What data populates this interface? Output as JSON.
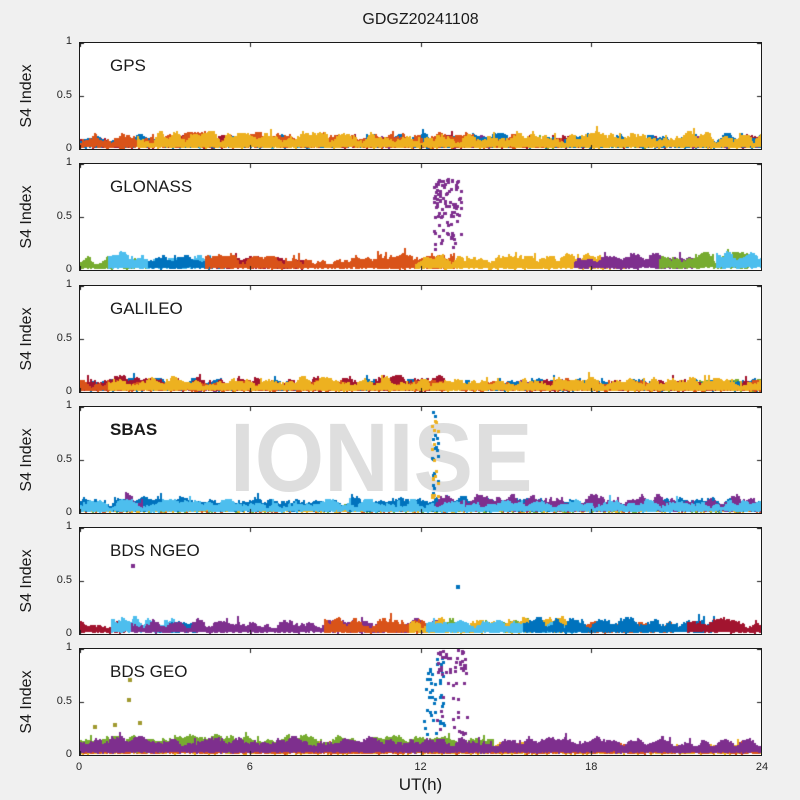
{
  "figure": {
    "title": "GDGZ20241108",
    "xlabel": "UT(h)",
    "ylabel": "S4 Index",
    "watermark": {
      "text": "IONISE",
      "subplot_index": 3,
      "color": "#dedede"
    },
    "background_color": "#f0f0f0",
    "plot_background": "#ffffff",
    "axis_color": "#1a1a1a",
    "x_ticks": [
      0,
      6,
      12,
      18,
      24
    ],
    "x_tick_labels": [
      "0",
      "6",
      "12",
      "18",
      "24"
    ],
    "y_ticks": [
      1,
      0.5,
      0
    ],
    "y_tick_labels": [
      "1",
      "0.5",
      "0"
    ],
    "palette": {
      "blue": "#0072BD",
      "orange": "#D95319",
      "yellow": "#EDB120",
      "purple": "#7E2F8E",
      "green": "#77AC30",
      "lightblue": "#4DBEEE",
      "darkred": "#A2142F",
      "olive": "#a09a30"
    }
  },
  "chart_data": [
    {
      "type": "scatter",
      "label": "GPS",
      "label_bold": false,
      "seed": 11,
      "xlim": [
        0,
        24
      ],
      "ylim": [
        0,
        1
      ],
      "bands": [
        {
          "color": "#77AC30",
          "x": [
            14,
            20
          ],
          "base": 0.02,
          "amp": 0.08
        },
        {
          "color": "#4DBEEE",
          "x": [
            3,
            9
          ],
          "base": 0.02,
          "amp": 0.09
        },
        {
          "color": "#A2142F",
          "x": [
            0,
            6
          ],
          "base": 0.02,
          "amp": 0.1
        },
        {
          "color": "#A2142F",
          "x": [
            9,
            24
          ],
          "base": 0.02,
          "amp": 0.1
        },
        {
          "color": "#7E2F8E",
          "x": [
            10,
            15
          ],
          "base": 0.02,
          "amp": 0.1
        },
        {
          "color": "#7E2F8E",
          "x": [
            20,
            24
          ],
          "base": 0.02,
          "amp": 0.09
        },
        {
          "color": "#0072BD",
          "x": [
            0,
            24
          ],
          "base": 0.02,
          "amp": 0.11
        },
        {
          "color": "#D95319",
          "x": [
            0,
            17
          ],
          "base": 0.02,
          "amp": 0.12
        },
        {
          "color": "#EDB120",
          "x": [
            2,
            24
          ],
          "base": 0.02,
          "amp": 0.13
        }
      ],
      "clusters": [],
      "points": []
    },
    {
      "type": "scatter",
      "label": "GLONASS",
      "label_bold": false,
      "seed": 22,
      "xlim": [
        0,
        24
      ],
      "ylim": [
        0,
        1
      ],
      "bands": [
        {
          "color": "#77AC30",
          "x": [
            0,
            2.6
          ],
          "base": 0.02,
          "amp": 0.12
        },
        {
          "color": "#4DBEEE",
          "x": [
            1.0,
            4.6
          ],
          "base": 0.03,
          "amp": 0.13
        },
        {
          "color": "#0072BD",
          "x": [
            2.4,
            5.6
          ],
          "base": 0.02,
          "amp": 0.11
        },
        {
          "color": "#A2142F",
          "x": [
            4.8,
            8.0
          ],
          "base": 0.02,
          "amp": 0.1
        },
        {
          "color": "#D95319",
          "x": [
            4.4,
            13.2
          ],
          "base": 0.02,
          "amp": 0.12
        },
        {
          "color": "#EDB120",
          "x": [
            11.8,
            19.6
          ],
          "base": 0.02,
          "amp": 0.12
        },
        {
          "color": "#7E2F8E",
          "x": [
            17.4,
            21.6
          ],
          "base": 0.02,
          "amp": 0.12
        },
        {
          "color": "#77AC30",
          "x": [
            20.4,
            23.6
          ],
          "base": 0.03,
          "amp": 0.12
        },
        {
          "color": "#4DBEEE",
          "x": [
            22.4,
            24
          ],
          "base": 0.04,
          "amp": 0.12
        }
      ],
      "clusters": [
        {
          "color": "#7E2F8E",
          "x": [
            12.4,
            13.4
          ],
          "groups": [
            {
              "y": [
                0.5,
                0.87
              ],
              "n": 75
            },
            {
              "y": [
                0.2,
                0.5
              ],
              "n": 25
            }
          ]
        }
      ],
      "points": []
    },
    {
      "type": "scatter",
      "label": "GALILEO",
      "label_bold": false,
      "seed": 33,
      "xlim": [
        0,
        24
      ],
      "ylim": [
        0,
        1
      ],
      "bands": [
        {
          "color": "#77AC30",
          "x": [
            20.5,
            24
          ],
          "base": 0.02,
          "amp": 0.09
        },
        {
          "color": "#7E2F8E",
          "x": [
            3.5,
            6.5
          ],
          "base": 0.02,
          "amp": 0.09
        },
        {
          "color": "#7E2F8E",
          "x": [
            14.5,
            17
          ],
          "base": 0.02,
          "amp": 0.09
        },
        {
          "color": "#0072BD",
          "x": [
            0,
            24
          ],
          "base": 0.02,
          "amp": 0.1
        },
        {
          "color": "#A2142F",
          "x": [
            0,
            13.5
          ],
          "base": 0.02,
          "amp": 0.12
        },
        {
          "color": "#A2142F",
          "x": [
            16,
            24
          ],
          "base": 0.02,
          "amp": 0.09
        },
        {
          "color": "#D95319",
          "x": [
            0,
            24
          ],
          "base": 0.01,
          "amp": 0.09
        },
        {
          "color": "#EDB120",
          "x": [
            1,
            24
          ],
          "base": 0.02,
          "amp": 0.11
        }
      ],
      "clusters": [],
      "points": []
    },
    {
      "type": "scatter",
      "label": "SBAS",
      "label_bold": true,
      "seed": 44,
      "xlim": [
        0,
        24
      ],
      "ylim": [
        0,
        1
      ],
      "bands": [
        {
          "color": "#D95319",
          "x": [
            0,
            24
          ],
          "base": 0.01,
          "amp": 0.06
        },
        {
          "color": "#77AC30",
          "x": [
            0,
            24
          ],
          "base": 0.01,
          "amp": 0.07
        },
        {
          "color": "#EDB120",
          "x": [
            0,
            24
          ],
          "base": 0.01,
          "amp": 0.07
        },
        {
          "color": "#0072BD",
          "x": [
            0,
            24
          ],
          "base": 0.03,
          "amp": 0.11
        },
        {
          "color": "#7E2F8E",
          "x": [
            12.5,
            24
          ],
          "base": 0.03,
          "amp": 0.13
        },
        {
          "color": "#7E2F8E",
          "x": [
            1.6,
            2.2
          ],
          "base": 0.05,
          "amp": 0.13
        },
        {
          "color": "#4DBEEE",
          "x": [
            0,
            24
          ],
          "base": 0.02,
          "amp": 0.1
        }
      ],
      "clusters": [
        {
          "color": "#0072BD",
          "x": [
            12.35,
            12.6
          ],
          "groups": [
            {
              "y": [
                0.5,
                0.97
              ],
              "n": 12
            },
            {
              "y": [
                0.15,
                0.5
              ],
              "n": 6
            }
          ]
        },
        {
          "color": "#EDB120",
          "x": [
            12.35,
            12.6
          ],
          "groups": [
            {
              "y": [
                0.3,
                0.9
              ],
              "n": 12
            },
            {
              "y": [
                0.12,
                0.3
              ],
              "n": 6
            }
          ]
        }
      ],
      "points": []
    },
    {
      "type": "scatter",
      "label": "BDS NGEO",
      "label_bold": false,
      "seed": 55,
      "xlim": [
        0,
        24
      ],
      "ylim": [
        0,
        1
      ],
      "bands": [
        {
          "color": "#A2142F",
          "x": [
            0,
            1.6
          ],
          "base": 0.02,
          "amp": 0.12
        },
        {
          "color": "#4DBEEE",
          "x": [
            1.1,
            3.3
          ],
          "base": 0.03,
          "amp": 0.13
        },
        {
          "color": "#0072BD",
          "x": [
            2.8,
            4.2
          ],
          "base": 0.02,
          "amp": 0.1
        },
        {
          "color": "#7E2F8E",
          "x": [
            1.8,
            12.6
          ],
          "base": 0.02,
          "amp": 0.11
        },
        {
          "color": "#D95319",
          "x": [
            8.6,
            12.8
          ],
          "base": 0.02,
          "amp": 0.12
        },
        {
          "color": "#77AC30",
          "x": [
            12.4,
            15.8
          ],
          "base": 0.03,
          "amp": 0.11
        },
        {
          "color": "#EDB120",
          "x": [
            11.6,
            17.2
          ],
          "base": 0.02,
          "amp": 0.13
        },
        {
          "color": "#4DBEEE",
          "x": [
            12.2,
            17.6
          ],
          "base": 0.02,
          "amp": 0.1
        },
        {
          "color": "#D95319",
          "x": [
            17.8,
            21.0
          ],
          "base": 0.02,
          "amp": 0.1
        },
        {
          "color": "#0072BD",
          "x": [
            15.6,
            22.4
          ],
          "base": 0.02,
          "amp": 0.13
        },
        {
          "color": "#A2142F",
          "x": [
            21.4,
            24
          ],
          "base": 0.02,
          "amp": 0.12
        }
      ],
      "clusters": [],
      "points": [
        {
          "color": "#7E2F8E",
          "x": 1.85,
          "y": 0.655
        },
        {
          "color": "#0072BD",
          "x": 13.3,
          "y": 0.45
        }
      ]
    },
    {
      "type": "scatter",
      "label": "BDS GEO",
      "label_bold": false,
      "seed": 66,
      "xlim": [
        0,
        24
      ],
      "ylim": [
        0,
        1
      ],
      "bands": [
        {
          "color": "#EDB120",
          "x": [
            0,
            24
          ],
          "base": 0.01,
          "amp": 0.1
        },
        {
          "color": "#D95319",
          "x": [
            0,
            24
          ],
          "base": 0.02,
          "amp": 0.08
        },
        {
          "color": "#77AC30",
          "x": [
            0,
            14.6
          ],
          "base": 0.08,
          "amp": 0.1
        },
        {
          "color": "#7E2F8E",
          "x": [
            0,
            24
          ],
          "base": 0.05,
          "amp": 0.11
        }
      ],
      "clusters": [
        {
          "color": "#0072BD",
          "x": [
            12.05,
            12.85
          ],
          "groups": [
            {
              "y": [
                0.5,
                0.95
              ],
              "n": 28
            },
            {
              "y": [
                0.2,
                0.5
              ],
              "n": 14
            }
          ]
        },
        {
          "color": "#7E2F8E",
          "x": [
            12.55,
            13.6
          ],
          "groups": [
            {
              "y": [
                0.78,
                1.0
              ],
              "n": 40
            },
            {
              "y": [
                0.15,
                0.78
              ],
              "n": 22
            }
          ]
        }
      ],
      "points": [
        {
          "color": "#a09a30",
          "x": 1.72,
          "y": 0.715
        },
        {
          "color": "#a09a30",
          "x": 1.7,
          "y": 0.53
        },
        {
          "color": "#a09a30",
          "x": 0.5,
          "y": 0.27
        },
        {
          "color": "#a09a30",
          "x": 1.2,
          "y": 0.29
        },
        {
          "color": "#a09a30",
          "x": 2.07,
          "y": 0.31
        }
      ]
    }
  ]
}
